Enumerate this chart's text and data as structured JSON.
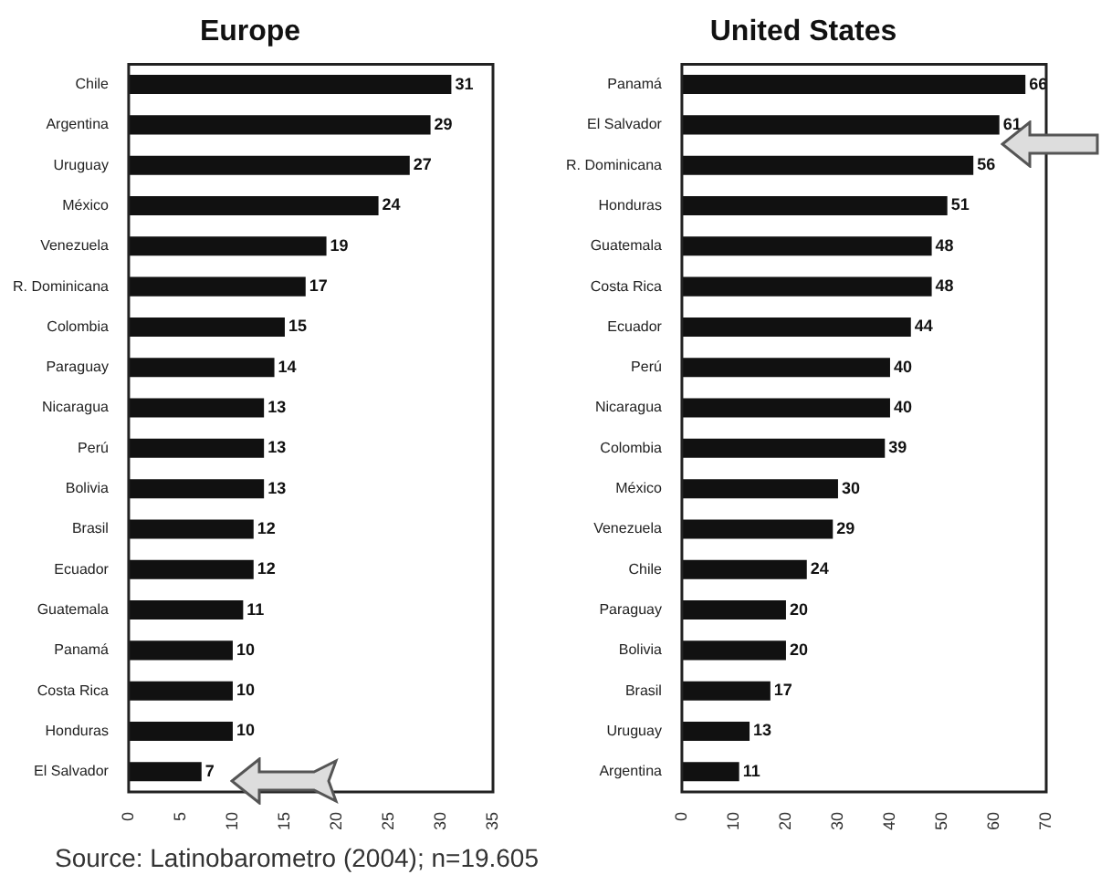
{
  "chart_data": [
    {
      "type": "bar",
      "title": "Europe",
      "orientation": "horizontal",
      "categories": [
        "Chile",
        "Argentina",
        "Uruguay",
        "México",
        "Venezuela",
        "R. Dominicana",
        "Colombia",
        "Paraguay",
        "Nicaragua",
        "Perú",
        "Bolivia",
        "Brasil",
        "Ecuador",
        "Guatemala",
        "Panamá",
        "Costa Rica",
        "Honduras",
        "El Salvador"
      ],
      "values": [
        31,
        29,
        27,
        24,
        19,
        17,
        15,
        14,
        13,
        13,
        13,
        12,
        12,
        11,
        10,
        10,
        10,
        7
      ],
      "color": "#111111",
      "xlim": [
        0,
        35
      ],
      "xticks": [
        0,
        5,
        10,
        15,
        20,
        25,
        30,
        35
      ],
      "data_labels": true,
      "grid": false,
      "legend": false,
      "annotations": [
        "Source: Latinobarometro (2004); n=19.605"
      ]
    },
    {
      "type": "bar",
      "title": "United States",
      "orientation": "horizontal",
      "categories": [
        "Panamá",
        "El Salvador",
        "R. Dominicana",
        "Honduras",
        "Guatemala",
        "Costa Rica",
        "Ecuador",
        "Perú",
        "Nicaragua",
        "Colombia",
        "México",
        "Venezuela",
        "Chile",
        "Paraguay",
        "Bolivia",
        "Brasil",
        "Uruguay",
        "Argentina"
      ],
      "values": [
        66,
        61,
        56,
        51,
        48,
        48,
        44,
        40,
        40,
        39,
        30,
        29,
        24,
        20,
        20,
        17,
        13,
        11
      ],
      "color": "#111111",
      "xlim": [
        0,
        70
      ],
      "xticks": [
        0,
        10,
        20,
        30,
        40,
        50,
        60,
        70
      ],
      "data_labels": true,
      "grid": false,
      "legend": false
    }
  ]
}
